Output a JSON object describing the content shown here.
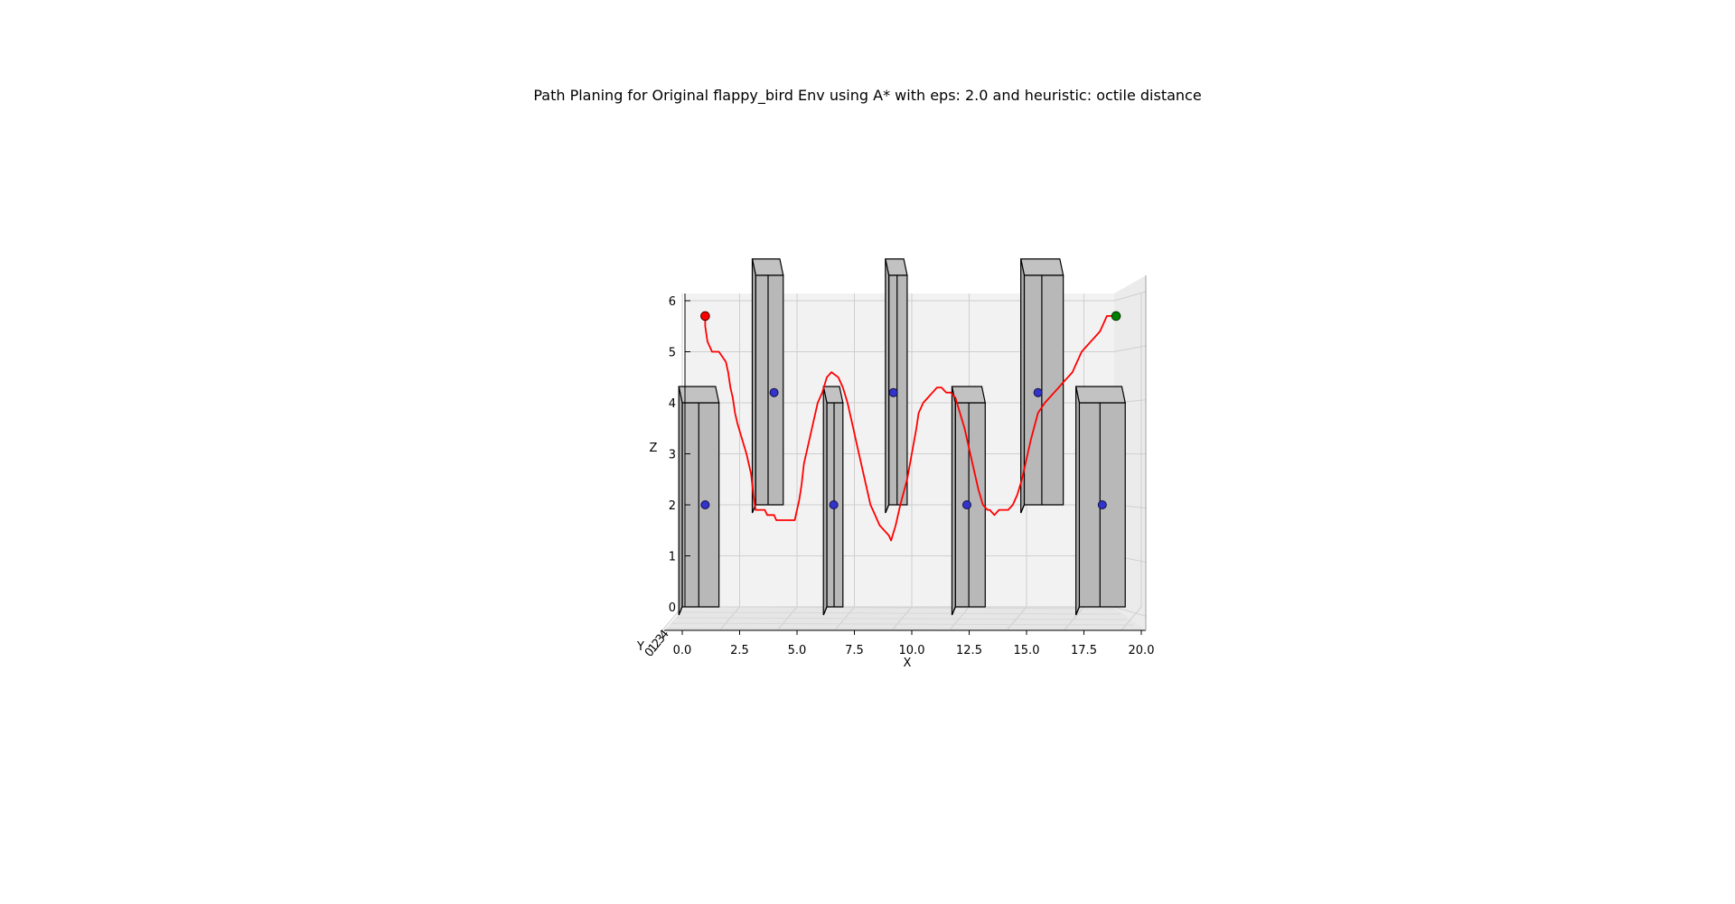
{
  "chart_data": {
    "type": "3d-path-plot",
    "title": "Path Planing for Original flappy_bird Env using A* with eps: 2.0 and heuristic: octile distance",
    "xlabel": "X",
    "ylabel": "Y",
    "zlabel": "Z",
    "xlim": [
      0,
      20
    ],
    "zlim": [
      0,
      6
    ],
    "x_ticks": [
      "0.0",
      "2.5",
      "5.0",
      "7.5",
      "10.0",
      "12.5",
      "15.0",
      "17.5",
      "20.0"
    ],
    "z_ticks": [
      "0",
      "1",
      "2",
      "3",
      "4",
      "5",
      "6"
    ],
    "y_ticks_partial": [
      "0",
      "1",
      "2",
      "3",
      "4"
    ],
    "start": {
      "x": 1.0,
      "z": 5.7,
      "color": "#ff0000"
    },
    "goal": {
      "x": 18.9,
      "z": 5.7,
      "color": "#008000"
    },
    "obstacle_centers": [
      {
        "x": 1.0,
        "z": 2.0
      },
      {
        "x": 4.0,
        "z": 4.2
      },
      {
        "x": 6.6,
        "z": 2.0
      },
      {
        "x": 9.2,
        "z": 4.2
      },
      {
        "x": 12.4,
        "z": 2.0
      },
      {
        "x": 15.5,
        "z": 4.2
      },
      {
        "x": 18.3,
        "z": 2.0
      }
    ],
    "obstacles": [
      {
        "x0": 0.0,
        "x1": 1.6,
        "z0": 0.0,
        "z1": 4.0
      },
      {
        "x0": 3.2,
        "x1": 4.4,
        "z0": 2.0,
        "z1": 6.5
      },
      {
        "x0": 6.3,
        "x1": 7.0,
        "z0": 0.0,
        "z1": 4.0
      },
      {
        "x0": 9.0,
        "x1": 9.8,
        "z0": 2.0,
        "z1": 6.5
      },
      {
        "x0": 11.9,
        "x1": 13.2,
        "z0": 0.0,
        "z1": 4.0
      },
      {
        "x0": 14.9,
        "x1": 16.6,
        "z0": 2.0,
        "z1": 6.5
      },
      {
        "x0": 17.3,
        "x1": 19.3,
        "z0": 0.0,
        "z1": 4.0
      }
    ],
    "path": {
      "color": "#ff0000",
      "x": [
        1.0,
        1.0,
        1.1,
        1.3,
        1.6,
        1.9,
        2.0,
        2.1,
        2.2,
        2.3,
        2.4,
        2.6,
        2.8,
        3.0,
        3.1,
        3.2,
        3.3,
        3.6,
        3.7,
        4.0,
        4.1,
        4.3,
        4.6,
        4.9,
        5.0,
        5.1,
        5.2,
        5.3,
        5.5,
        5.7,
        5.9,
        6.1,
        6.3,
        6.5,
        6.8,
        7.0,
        7.2,
        7.4,
        7.6,
        7.8,
        8.0,
        8.2,
        8.4,
        8.6,
        8.8,
        9.0,
        9.1,
        9.3,
        9.5,
        9.8,
        10.0,
        10.2,
        10.3,
        10.5,
        10.7,
        10.9,
        11.1,
        11.3,
        11.5,
        11.7,
        11.9,
        12.1,
        12.3,
        12.5,
        12.7,
        12.9,
        13.1,
        13.3,
        13.4,
        13.6,
        13.8,
        14.0,
        14.2,
        14.4,
        14.6,
        14.8,
        15.0,
        15.2,
        15.5,
        15.8,
        16.0,
        16.2,
        16.4,
        16.6,
        16.8,
        17.0,
        17.2,
        17.4,
        17.6,
        17.8,
        18.0,
        18.2,
        18.4,
        18.5,
        18.6,
        18.7,
        18.8,
        18.9
      ],
      "z": [
        5.7,
        5.5,
        5.2,
        5.0,
        5.0,
        4.8,
        4.6,
        4.3,
        4.1,
        3.8,
        3.6,
        3.3,
        3.0,
        2.6,
        2.2,
        1.9,
        1.9,
        1.9,
        1.8,
        1.8,
        1.7,
        1.7,
        1.7,
        1.7,
        1.9,
        2.1,
        2.4,
        2.8,
        3.2,
        3.6,
        4.0,
        4.2,
        4.5,
        4.6,
        4.5,
        4.3,
        4.0,
        3.6,
        3.2,
        2.8,
        2.4,
        2.0,
        1.8,
        1.6,
        1.5,
        1.4,
        1.3,
        1.6,
        2.0,
        2.5,
        3.0,
        3.5,
        3.8,
        4.0,
        4.1,
        4.2,
        4.3,
        4.3,
        4.2,
        4.2,
        4.1,
        3.8,
        3.5,
        3.1,
        2.7,
        2.3,
        2.0,
        1.9,
        1.9,
        1.8,
        1.9,
        1.9,
        1.9,
        2.0,
        2.2,
        2.5,
        2.9,
        3.3,
        3.8,
        4.0,
        4.1,
        4.2,
        4.3,
        4.4,
        4.5,
        4.6,
        4.8,
        5.0,
        5.1,
        5.2,
        5.3,
        5.4,
        5.6,
        5.7,
        5.7,
        5.7,
        5.7,
        5.7
      ]
    }
  }
}
